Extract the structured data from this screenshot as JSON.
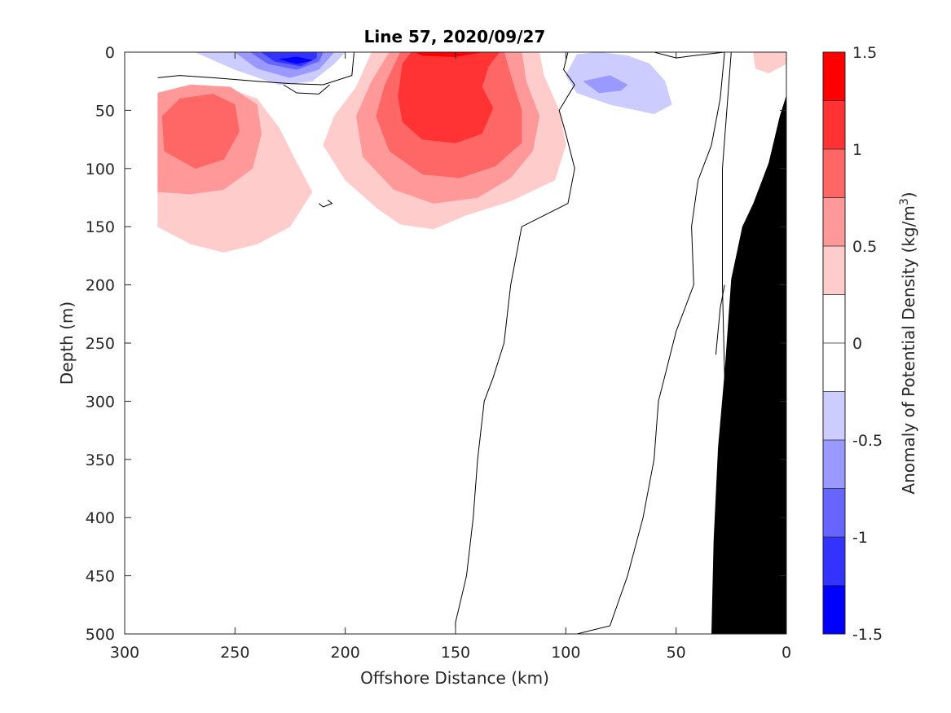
{
  "chart_data": {
    "type": "filled-contour",
    "title": "Line 57, 2020/09/27",
    "xlabel": "Offshore Distance (km)",
    "ylabel": "Depth (m)",
    "xlim": [
      300,
      0
    ],
    "ylim": [
      500,
      0
    ],
    "x_reversed": true,
    "y_reversed": true,
    "xticks": [
      300,
      250,
      200,
      150,
      100,
      50,
      0
    ],
    "yticks": [
      0,
      50,
      100,
      150,
      200,
      250,
      300,
      350,
      400,
      450,
      500
    ],
    "xtick_labels": [
      "300",
      "250",
      "200",
      "150",
      "100",
      "50",
      "0"
    ],
    "ytick_labels": [
      "0",
      "50",
      "100",
      "150",
      "200",
      "250",
      "300",
      "350",
      "400",
      "450",
      "500"
    ],
    "grid": false,
    "colorbar": {
      "label_main": "Anomaly of Potential Density (kg/m",
      "label_sup": "3",
      "label_end": ")",
      "limits": [
        -1.5,
        1.5
      ],
      "ticks": [
        1.5,
        1,
        0.5,
        0,
        -0.5,
        -1,
        -1.5
      ],
      "tick_labels": [
        "1.5",
        "1",
        "0.5",
        "0",
        "-0.5",
        "-1",
        "-1.5"
      ],
      "levels": [
        {
          "from": 1.25,
          "to": 1.5,
          "color": "#ff0000"
        },
        {
          "from": 1.0,
          "to": 1.25,
          "color": "#ff3333"
        },
        {
          "from": 0.75,
          "to": 1.0,
          "color": "#ff6666"
        },
        {
          "from": 0.5,
          "to": 0.75,
          "color": "#ff9999"
        },
        {
          "from": 0.25,
          "to": 0.5,
          "color": "#ffcccc"
        },
        {
          "from": 0.0,
          "to": 0.25,
          "color": "#ffffff"
        },
        {
          "from": -0.25,
          "to": 0.0,
          "color": "#ffffff"
        },
        {
          "from": -0.5,
          "to": -0.25,
          "color": "#ccccff"
        },
        {
          "from": -0.75,
          "to": -0.5,
          "color": "#9999ff"
        },
        {
          "from": -1.0,
          "to": -0.75,
          "color": "#6666ff"
        },
        {
          "from": -1.25,
          "to": -1.0,
          "color": "#3333ff"
        },
        {
          "from": -1.5,
          "to": -1.25,
          "color": "#0000ff"
        }
      ]
    },
    "anomaly_regions": [
      {
        "level": 0.375,
        "color": "#ffcccc",
        "points": [
          [
            285,
            150
          ],
          [
            285,
            40
          ],
          [
            275,
            30
          ],
          [
            255,
            30
          ],
          [
            240,
            40
          ],
          [
            230,
            65
          ],
          [
            222,
            95
          ],
          [
            215,
            120
          ],
          [
            225,
            150
          ],
          [
            240,
            165
          ],
          [
            255,
            172
          ],
          [
            270,
            165
          ]
        ]
      },
      {
        "level": 0.625,
        "color": "#ff9999",
        "points": [
          [
            285,
            120
          ],
          [
            285,
            35
          ],
          [
            270,
            28
          ],
          [
            252,
            30
          ],
          [
            240,
            45
          ],
          [
            238,
            70
          ],
          [
            242,
            100
          ],
          [
            255,
            118
          ],
          [
            270,
            122
          ]
        ]
      },
      {
        "level": 0.875,
        "color": "#ff6666",
        "points": [
          [
            282,
            85
          ],
          [
            283,
            55
          ],
          [
            275,
            40
          ],
          [
            260,
            36
          ],
          [
            250,
            45
          ],
          [
            248,
            68
          ],
          [
            255,
            92
          ],
          [
            268,
            100
          ]
        ]
      },
      {
        "level": 0.375,
        "color": "#ffcccc",
        "points": [
          [
            188,
            0
          ],
          [
            195,
            30
          ],
          [
            205,
            55
          ],
          [
            210,
            80
          ],
          [
            200,
            110
          ],
          [
            185,
            135
          ],
          [
            175,
            148
          ],
          [
            160,
            152
          ],
          [
            145,
            140
          ],
          [
            125,
            128
          ],
          [
            105,
            110
          ],
          [
            100,
            80
          ],
          [
            103,
            50
          ],
          [
            110,
            20
          ],
          [
            112,
            0
          ]
        ]
      },
      {
        "level": 0.625,
        "color": "#ff9999",
        "points": [
          [
            180,
            0
          ],
          [
            188,
            25
          ],
          [
            195,
            55
          ],
          [
            192,
            90
          ],
          [
            178,
            118
          ],
          [
            160,
            130
          ],
          [
            140,
            125
          ],
          [
            125,
            108
          ],
          [
            115,
            85
          ],
          [
            112,
            55
          ],
          [
            118,
            25
          ],
          [
            120,
            0
          ]
        ]
      },
      {
        "level": 0.875,
        "color": "#ff6666",
        "points": [
          [
            175,
            0
          ],
          [
            182,
            28
          ],
          [
            186,
            55
          ],
          [
            180,
            85
          ],
          [
            165,
            105
          ],
          [
            148,
            108
          ],
          [
            132,
            98
          ],
          [
            120,
            78
          ],
          [
            120,
            50
          ],
          [
            125,
            20
          ],
          [
            128,
            0
          ]
        ]
      },
      {
        "level": 1.125,
        "color": "#ff3333",
        "points": [
          [
            170,
            0
          ],
          [
            174,
            10
          ],
          [
            176,
            38
          ],
          [
            174,
            60
          ],
          [
            165,
            75
          ],
          [
            150,
            78
          ],
          [
            138,
            70
          ],
          [
            133,
            48
          ],
          [
            138,
            30
          ],
          [
            135,
            12
          ],
          [
            130,
            0
          ]
        ]
      },
      {
        "level": 1.375,
        "color": "#ff0000",
        "points": [
          [
            168,
            0
          ],
          [
            165,
            3
          ],
          [
            150,
            4
          ],
          [
            138,
            0
          ]
        ]
      },
      {
        "level": 0.375,
        "color": "#ffcccc",
        "points": [
          [
            15,
            0
          ],
          [
            14,
            14
          ],
          [
            8,
            18
          ],
          [
            0,
            10
          ],
          [
            0,
            0
          ]
        ]
      },
      {
        "level": -0.375,
        "color": "#ccccff",
        "points": [
          [
            268,
            0
          ],
          [
            250,
            15
          ],
          [
            230,
            28
          ],
          [
            215,
            25
          ],
          [
            205,
            10
          ],
          [
            200,
            0
          ]
        ]
      },
      {
        "level": -0.625,
        "color": "#9999ff",
        "points": [
          [
            250,
            0
          ],
          [
            240,
            14
          ],
          [
            225,
            22
          ],
          [
            212,
            15
          ],
          [
            205,
            0
          ]
        ]
      },
      {
        "level": -0.875,
        "color": "#6666ff",
        "points": [
          [
            243,
            0
          ],
          [
            235,
            10
          ],
          [
            222,
            15
          ],
          [
            212,
            8
          ],
          [
            210,
            0
          ]
        ]
      },
      {
        "level": -1.125,
        "color": "#3333ff",
        "points": [
          [
            238,
            0
          ],
          [
            232,
            8
          ],
          [
            220,
            12
          ],
          [
            213,
            5
          ],
          [
            213,
            0
          ]
        ]
      },
      {
        "level": -1.375,
        "color": "#0000ff",
        "points": [
          [
            230,
            6
          ],
          [
            222,
            10
          ],
          [
            215,
            7
          ],
          [
            222,
            4
          ]
        ]
      },
      {
        "level": -0.375,
        "color": "#ccccff",
        "points": [
          [
            95,
            2
          ],
          [
            100,
            20
          ],
          [
            95,
            35
          ],
          [
            80,
            45
          ],
          [
            60,
            53
          ],
          [
            52,
            45
          ],
          [
            55,
            25
          ],
          [
            62,
            10
          ],
          [
            72,
            3
          ],
          [
            85,
            0
          ]
        ]
      },
      {
        "level": -0.625,
        "color": "#9999ff",
        "points": [
          [
            92,
            25
          ],
          [
            85,
            35
          ],
          [
            75,
            33
          ],
          [
            72,
            28
          ],
          [
            80,
            20
          ]
        ]
      }
    ],
    "zero_contours": [
      [
        [
          285,
          22
        ],
        [
          275,
          20
        ],
        [
          260,
          22
        ],
        [
          240,
          25
        ],
        [
          225,
          27
        ],
        [
          210,
          28
        ],
        [
          197,
          20
        ],
        [
          196,
          0
        ]
      ],
      [
        [
          228,
          28
        ],
        [
          222,
          35
        ],
        [
          212,
          36
        ],
        [
          207,
          28
        ]
      ],
      [
        [
          99,
          0
        ],
        [
          101,
          15
        ],
        [
          96,
          28
        ],
        [
          103,
          50
        ],
        [
          100,
          70
        ],
        [
          96,
          100
        ],
        [
          99,
          130
        ],
        [
          120,
          150
        ],
        [
          125,
          200
        ],
        [
          128,
          250
        ],
        [
          133,
          280
        ],
        [
          137,
          300
        ],
        [
          140,
          350
        ],
        [
          142,
          400
        ],
        [
          145,
          450
        ],
        [
          150,
          490
        ],
        [
          150,
          500
        ]
      ],
      [
        [
          60,
          0
        ],
        [
          50,
          5
        ],
        [
          42,
          3
        ],
        [
          28,
          0
        ]
      ],
      [
        [
          28,
          0
        ],
        [
          30,
          40
        ],
        [
          34,
          80
        ],
        [
          40,
          110
        ],
        [
          43,
          150
        ],
        [
          42,
          200
        ],
        [
          50,
          240
        ],
        [
          58,
          300
        ],
        [
          60,
          350
        ],
        [
          65,
          400
        ],
        [
          72,
          450
        ],
        [
          80,
          493
        ],
        [
          95,
          500
        ]
      ],
      [
        [
          25,
          0
        ],
        [
          29,
          100
        ],
        [
          29,
          200
        ],
        [
          28,
          280
        ],
        [
          30,
          350
        ]
      ],
      [
        [
          28,
          200
        ],
        [
          30,
          220
        ],
        [
          32,
          260
        ]
      ],
      [
        [
          212,
          130
        ],
        [
          210,
          133
        ],
        [
          206,
          130
        ],
        [
          208,
          127
        ]
      ]
    ],
    "seafloor": {
      "color": "#000000",
      "points": [
        [
          0,
          37
        ],
        [
          3,
          55
        ],
        [
          8,
          95
        ],
        [
          15,
          130
        ],
        [
          20,
          150
        ],
        [
          25,
          195
        ],
        [
          28,
          275
        ],
        [
          31,
          340
        ],
        [
          33,
          420
        ],
        [
          34,
          500
        ],
        [
          0,
          500
        ]
      ]
    }
  }
}
